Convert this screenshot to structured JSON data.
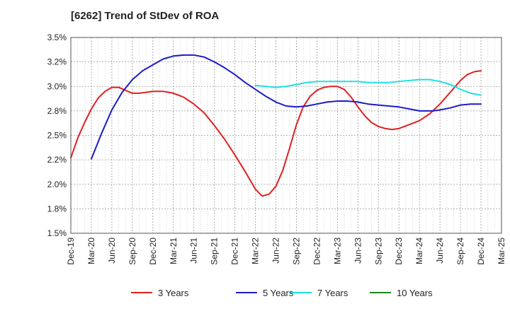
{
  "chart_data": {
    "type": "line",
    "title": "[6262]  Trend of StDev of ROA",
    "xlabel": "",
    "ylabel": "",
    "x_ticks": [
      "Dec-19",
      "Mar-20",
      "Jun-20",
      "Sep-20",
      "Dec-20",
      "Mar-21",
      "Jun-21",
      "Sep-21",
      "Dec-21",
      "Mar-22",
      "Jun-22",
      "Sep-22",
      "Dec-22",
      "Mar-23",
      "Jun-23",
      "Sep-23",
      "Dec-23",
      "Mar-24",
      "Jun-24",
      "Sep-24",
      "Dec-24",
      "Mar-25"
    ],
    "y_ticks": [
      "1.5%",
      "1.8%",
      "2.0%",
      "2.2%",
      "2.5%",
      "2.8%",
      "3.0%",
      "3.2%",
      "3.5%"
    ],
    "ylim": [
      1.5,
      3.5
    ],
    "grid": true,
    "legend_position": "bottom",
    "series": [
      {
        "name": "3 Years",
        "color": "#e02020",
        "x": [
          0,
          0.33,
          0.67,
          1,
          1.33,
          1.67,
          2,
          2.33,
          2.67,
          3,
          3.33,
          3.67,
          4,
          4.5,
          5,
          5.5,
          6,
          6.5,
          7,
          7.5,
          8,
          8.5,
          9,
          9.33,
          9.67,
          10,
          10.33,
          10.67,
          11,
          11.33,
          11.67,
          12,
          12.33,
          12.67,
          13,
          13.33,
          13.67,
          14,
          14.33,
          14.67,
          15,
          15.33,
          15.67,
          16,
          16.5,
          17,
          17.5,
          18,
          18.5,
          19,
          19.33,
          19.67,
          20
        ],
        "values": [
          2.27,
          2.47,
          2.63,
          2.77,
          2.88,
          2.95,
          2.99,
          2.99,
          2.96,
          2.93,
          2.93,
          2.94,
          2.95,
          2.95,
          2.93,
          2.89,
          2.82,
          2.73,
          2.6,
          2.46,
          2.3,
          2.13,
          1.95,
          1.88,
          1.9,
          1.98,
          2.14,
          2.37,
          2.61,
          2.79,
          2.9,
          2.96,
          2.99,
          3.0,
          3.0,
          2.97,
          2.89,
          2.79,
          2.7,
          2.63,
          2.59,
          2.57,
          2.56,
          2.57,
          2.61,
          2.65,
          2.72,
          2.82,
          2.94,
          3.06,
          3.12,
          3.15,
          3.16
        ]
      },
      {
        "name": "5 Years",
        "color": "#1c1cc8",
        "x": [
          1,
          1.5,
          2,
          2.5,
          3,
          3.5,
          4,
          4.5,
          5,
          5.5,
          6,
          6.5,
          7,
          7.5,
          8,
          8.5,
          9,
          9.5,
          10,
          10.5,
          11,
          11.5,
          12,
          12.5,
          13,
          13.5,
          14,
          14.5,
          15,
          15.5,
          16,
          16.5,
          17,
          17.33,
          17.67,
          18,
          18.5,
          19,
          19.5,
          20
        ],
        "values": [
          2.26,
          2.52,
          2.76,
          2.94,
          3.07,
          3.16,
          3.22,
          3.28,
          3.31,
          3.32,
          3.32,
          3.3,
          3.25,
          3.19,
          3.12,
          3.04,
          2.97,
          2.9,
          2.84,
          2.8,
          2.79,
          2.8,
          2.82,
          2.84,
          2.85,
          2.85,
          2.84,
          2.82,
          2.81,
          2.8,
          2.79,
          2.77,
          2.75,
          2.75,
          2.75,
          2.76,
          2.78,
          2.81,
          2.82,
          2.82
        ]
      },
      {
        "name": "7 Years",
        "color": "#20e0e0",
        "x": [
          9,
          9.5,
          10,
          10.5,
          11,
          11.5,
          12,
          12.5,
          13,
          13.5,
          14,
          14.5,
          15,
          15.5,
          16,
          16.5,
          17,
          17.5,
          18,
          18.5,
          19,
          19.5,
          20
        ],
        "values": [
          3.01,
          3.0,
          2.99,
          3.0,
          3.02,
          3.04,
          3.05,
          3.05,
          3.05,
          3.05,
          3.05,
          3.04,
          3.04,
          3.04,
          3.05,
          3.06,
          3.07,
          3.07,
          3.05,
          3.02,
          2.97,
          2.93,
          2.91
        ]
      },
      {
        "name": "10 Years",
        "color": "#1a8a1a",
        "x": [],
        "values": []
      }
    ]
  }
}
